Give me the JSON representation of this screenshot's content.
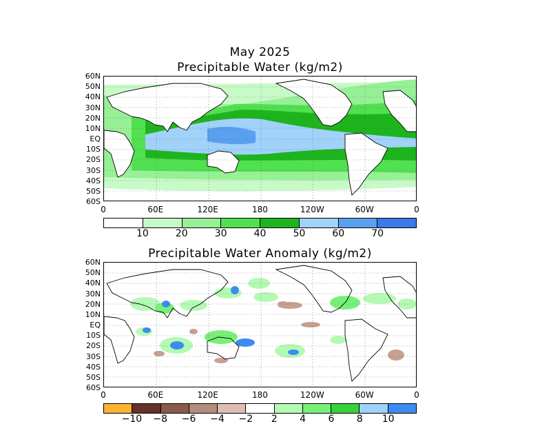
{
  "header": {
    "date": "May 2025"
  },
  "panel_top": {
    "title": "Precipitable Water (kg/m2)"
  },
  "panel_bottom": {
    "title": "Precipitable Water Anomaly (kg/m2)"
  },
  "lat_labels": [
    "60N",
    "50N",
    "40N",
    "30N",
    "20N",
    "10N",
    "EQ",
    "10S",
    "20S",
    "30S",
    "40S",
    "50S",
    "60S"
  ],
  "lon_labels": [
    "0",
    "60E",
    "120E",
    "180",
    "120W",
    "60W",
    "0"
  ],
  "colorbar_top": {
    "colors": [
      "#ffffff",
      "#c8fac8",
      "#96f096",
      "#50e050",
      "#1eb41e",
      "#a0d2fa",
      "#5aa0f0",
      "#3c78e6"
    ],
    "labels": [
      "10",
      "20",
      "30",
      "40",
      "50",
      "60",
      "70"
    ]
  },
  "colorbar_bottom": {
    "colors": [
      "#fab432",
      "#643228",
      "#8c5a4b",
      "#b48c7d",
      "#dcbeb4",
      "#ffffff",
      "#b4fab4",
      "#78f078",
      "#37d237",
      "#a0d2fa",
      "#3c8cf0"
    ],
    "labels": [
      "−10",
      "−8",
      "−6",
      "−4",
      "−2",
      "2",
      "4",
      "6",
      "8",
      "10"
    ]
  },
  "map_colors": {
    "land_outline": "#000000",
    "anom_pos_light": "#b4fab4",
    "anom_pos": "#78f078",
    "anom_pos_strong": "#3c8cf0",
    "anom_neg": "#c8a090"
  }
}
